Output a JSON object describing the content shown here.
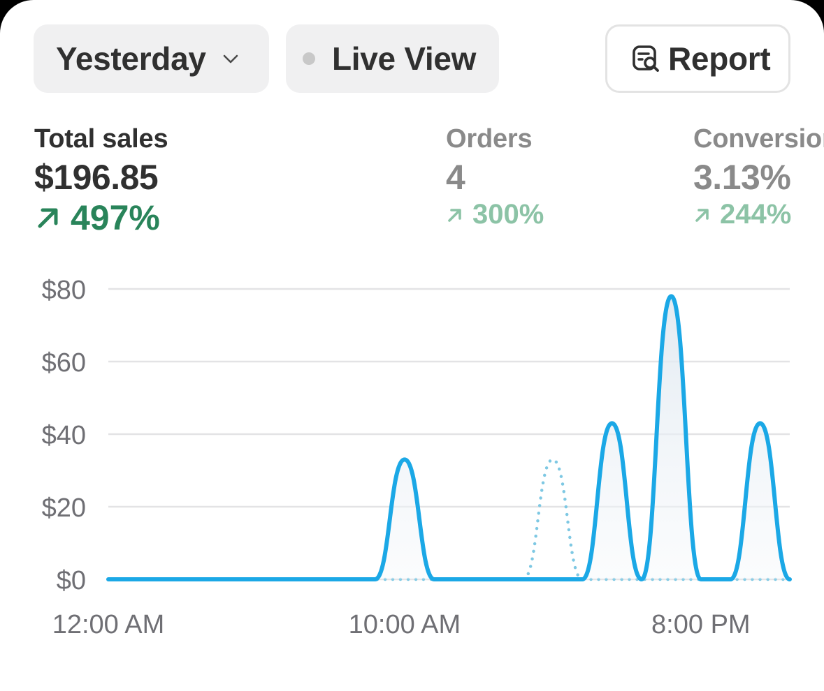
{
  "toolbar": {
    "date_label": "Yesterday",
    "live_label": "Live View",
    "report_label": "Report"
  },
  "metrics": [
    {
      "label": "Total sales",
      "value": "$196.85",
      "delta": "497%",
      "direction": "up"
    },
    {
      "label": "Orders",
      "value": "4",
      "delta": "300%",
      "direction": "up"
    },
    {
      "label": "Conversion",
      "value": "3.13%",
      "delta": "244%",
      "direction": "up"
    }
  ],
  "colors": {
    "accent": "#1ba8e6",
    "positive": "#29845a",
    "positive_muted": "#8cc3a6",
    "comparison": "#7ec8e3"
  },
  "chart_data": {
    "type": "line",
    "y_ticks": [
      "$0",
      "$20",
      "$40",
      "$60",
      "$80"
    ],
    "ylim": [
      0,
      80
    ],
    "x_ticks": [
      {
        "label": "12:00 AM",
        "hour": 0
      },
      {
        "label": "10:00 AM",
        "hour": 10
      },
      {
        "label": "8:00 PM",
        "hour": 20
      }
    ],
    "xlim": [
      0,
      23
    ],
    "grid": true,
    "series": [
      {
        "style": "solid",
        "color": "#1ba8e6",
        "points": [
          {
            "hour": 0,
            "value": 0
          },
          {
            "hour": 1,
            "value": 0
          },
          {
            "hour": 2,
            "value": 0
          },
          {
            "hour": 3,
            "value": 0
          },
          {
            "hour": 4,
            "value": 0
          },
          {
            "hour": 5,
            "value": 0
          },
          {
            "hour": 6,
            "value": 0
          },
          {
            "hour": 7,
            "value": 0
          },
          {
            "hour": 8,
            "value": 0
          },
          {
            "hour": 9,
            "value": 0
          },
          {
            "hour": 10,
            "value": 33
          },
          {
            "hour": 11,
            "value": 0
          },
          {
            "hour": 12,
            "value": 0
          },
          {
            "hour": 13,
            "value": 0
          },
          {
            "hour": 14,
            "value": 0
          },
          {
            "hour": 15,
            "value": 0
          },
          {
            "hour": 16,
            "value": 0
          },
          {
            "hour": 17,
            "value": 43
          },
          {
            "hour": 18,
            "value": 0
          },
          {
            "hour": 19,
            "value": 78
          },
          {
            "hour": 20,
            "value": 0
          },
          {
            "hour": 21,
            "value": 0
          },
          {
            "hour": 22,
            "value": 43
          },
          {
            "hour": 23,
            "value": 0
          }
        ]
      },
      {
        "style": "dotted",
        "color": "#7ec8e3",
        "points": [
          {
            "hour": 0,
            "value": 0
          },
          {
            "hour": 1,
            "value": 0
          },
          {
            "hour": 2,
            "value": 0
          },
          {
            "hour": 3,
            "value": 0
          },
          {
            "hour": 4,
            "value": 0
          },
          {
            "hour": 5,
            "value": 0
          },
          {
            "hour": 6,
            "value": 0
          },
          {
            "hour": 7,
            "value": 0
          },
          {
            "hour": 8,
            "value": 0
          },
          {
            "hour": 9,
            "value": 0
          },
          {
            "hour": 10,
            "value": 0
          },
          {
            "hour": 11,
            "value": 0
          },
          {
            "hour": 12,
            "value": 0
          },
          {
            "hour": 13,
            "value": 0
          },
          {
            "hour": 14,
            "value": 0
          },
          {
            "hour": 15,
            "value": 33
          },
          {
            "hour": 16,
            "value": 0
          },
          {
            "hour": 17,
            "value": 0
          },
          {
            "hour": 18,
            "value": 0
          },
          {
            "hour": 19,
            "value": 0
          },
          {
            "hour": 20,
            "value": 0
          },
          {
            "hour": 21,
            "value": 0
          },
          {
            "hour": 22,
            "value": 0
          },
          {
            "hour": 23,
            "value": 0
          }
        ]
      }
    ]
  }
}
